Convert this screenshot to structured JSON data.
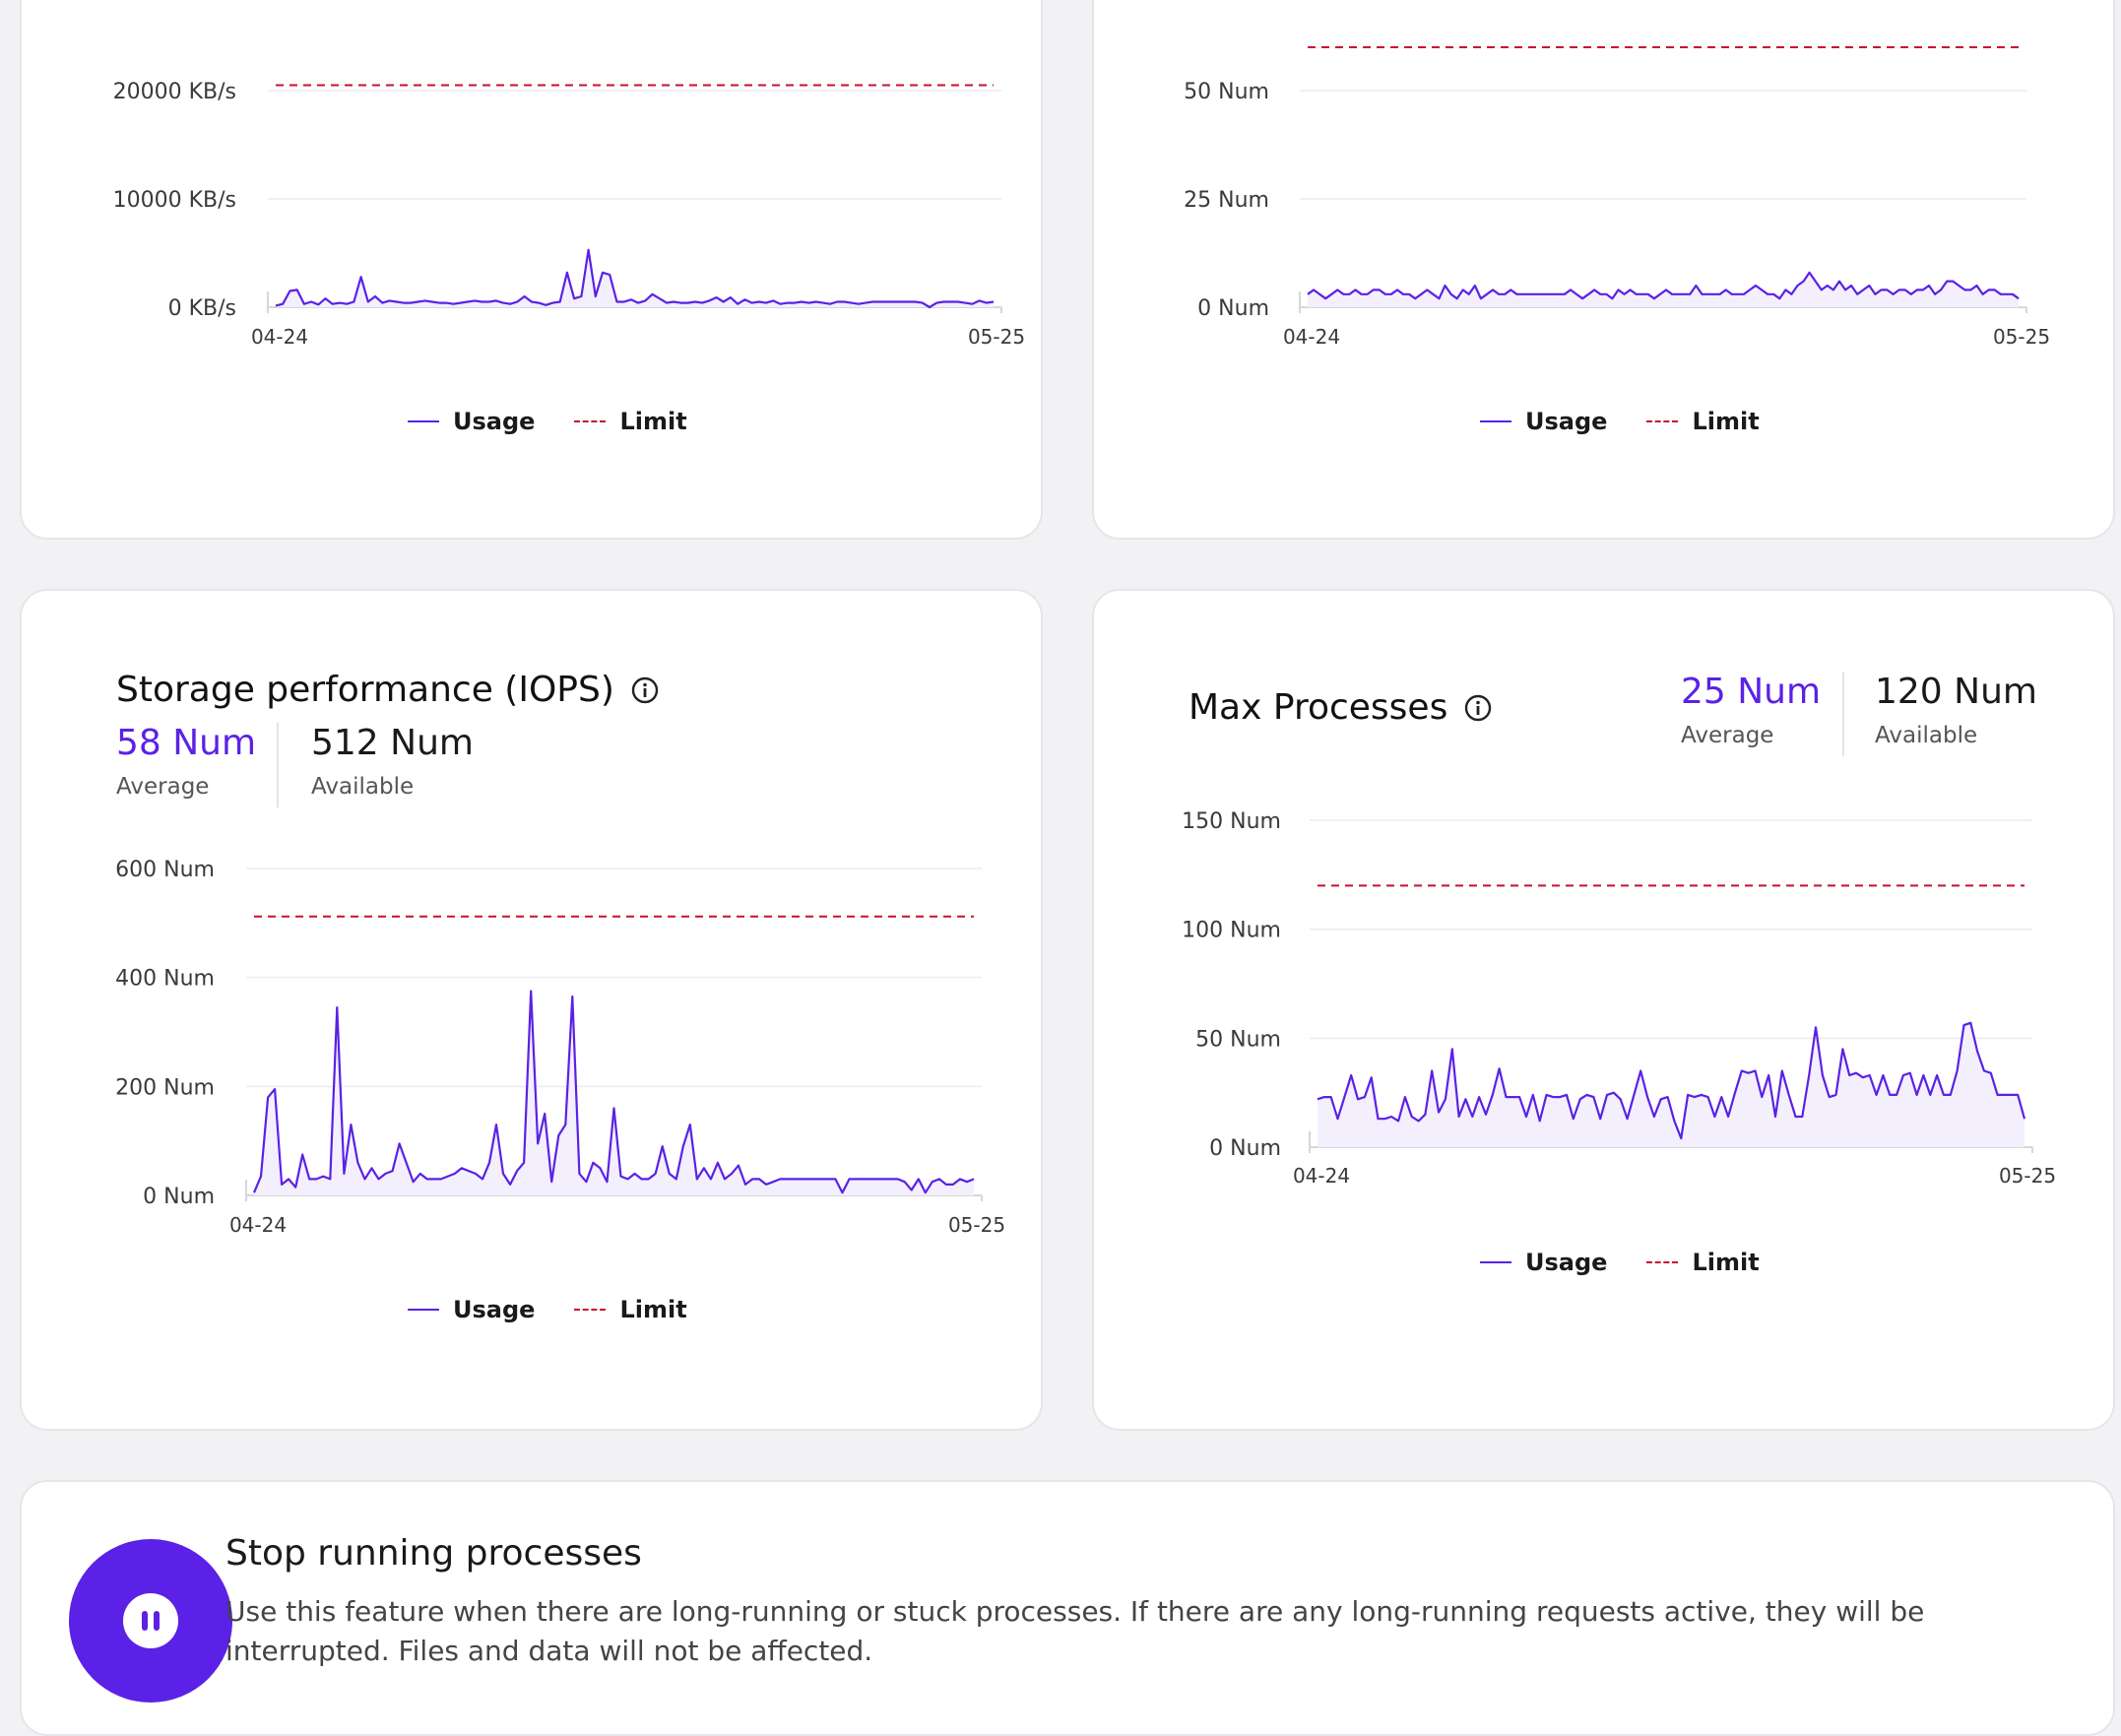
{
  "colors": {
    "accent": "#5b21e6",
    "limit": "#c8102e",
    "grid": "#ececf0",
    "area": "#f3effd"
  },
  "cards": {
    "bandwidth": {
      "legend": {
        "usage": "Usage",
        "limit": "Limit"
      }
    },
    "processes": {
      "legend": {
        "usage": "Usage",
        "limit": "Limit"
      }
    },
    "iops": {
      "title": "Storage performance (IOPS)",
      "info_icon": "info-icon",
      "average_value": "58 Num",
      "average_label": "Average",
      "available_value": "512 Num",
      "available_label": "Available",
      "legend": {
        "usage": "Usage",
        "limit": "Limit"
      }
    },
    "max_processes": {
      "title": "Max Processes",
      "info_icon": "info-icon",
      "average_value": "25 Num",
      "average_label": "Average",
      "available_value": "120 Num",
      "available_label": "Available",
      "legend": {
        "usage": "Usage",
        "limit": "Limit"
      }
    }
  },
  "stop": {
    "icon": "pause-icon",
    "title": "Stop running processes",
    "description": "Use this feature when there are long-running or stuck processes. If there are any long-running requests active, they will be interrupted. Files and data will not be affected."
  },
  "chart_data": [
    {
      "type": "line",
      "id": "bandwidth",
      "ylim": [
        0,
        20000
      ],
      "yticks": [
        0,
        10000,
        20000
      ],
      "ytick_labels": [
        "0 KB/s",
        "10000 KB/s",
        "20000 KB/s"
      ],
      "xtick_labels": [
        "04-24",
        "05-25"
      ],
      "limit": 20500,
      "series": [
        {
          "name": "Usage",
          "values": [
            150,
            300,
            1500,
            1600,
            300,
            500,
            250,
            800,
            300,
            400,
            300,
            500,
            2800,
            500,
            1000,
            400,
            600,
            500,
            400,
            400,
            500,
            600,
            500,
            400,
            400,
            300,
            400,
            500,
            600,
            500,
            500,
            600,
            400,
            300,
            500,
            1000,
            500,
            400,
            200,
            400,
            500,
            3200,
            800,
            1000,
            5300,
            1000,
            3200,
            3000,
            500,
            500,
            700,
            400,
            600,
            1200,
            800,
            400,
            500,
            400,
            400,
            500,
            400,
            600,
            900,
            500,
            900,
            300,
            700,
            400,
            500,
            400,
            600,
            300,
            400,
            400,
            500,
            400,
            500,
            400,
            300,
            500,
            500,
            400,
            300,
            400,
            500,
            500,
            500,
            500,
            500,
            500,
            500,
            400,
            0,
            400,
            500,
            500,
            500,
            400,
            300,
            600,
            400,
            500
          ]
        },
        {
          "name": "Limit",
          "values": [
            20500,
            20500
          ]
        }
      ]
    },
    {
      "type": "line",
      "id": "processes",
      "ylim": [
        0,
        50
      ],
      "yticks": [
        0,
        25,
        50
      ],
      "ytick_labels": [
        "0 Num",
        "25 Num",
        "50 Num"
      ],
      "xtick_labels": [
        "04-24",
        "05-25"
      ],
      "limit": 60,
      "series": [
        {
          "name": "Usage",
          "values": [
            3,
            4,
            3,
            2,
            3,
            4,
            3,
            3,
            4,
            3,
            3,
            4,
            4,
            3,
            3,
            4,
            3,
            3,
            2,
            3,
            4,
            3,
            2,
            5,
            3,
            2,
            4,
            3,
            5,
            2,
            3,
            4,
            3,
            3,
            4,
            3,
            3,
            3,
            3,
            3,
            3,
            3,
            3,
            3,
            4,
            3,
            2,
            3,
            4,
            3,
            3,
            2,
            4,
            3,
            4,
            3,
            3,
            3,
            2,
            3,
            4,
            3,
            3,
            3,
            3,
            5,
            3,
            3,
            3,
            3,
            4,
            3,
            3,
            3,
            4,
            5,
            4,
            3,
            3,
            2,
            4,
            3,
            5,
            6,
            8,
            6,
            4,
            5,
            4,
            6,
            4,
            5,
            3,
            4,
            5,
            3,
            4,
            4,
            3,
            4,
            4,
            3,
            4,
            4,
            5,
            3,
            4,
            6,
            6,
            5,
            4,
            4,
            5,
            3,
            4,
            4,
            3,
            3,
            3,
            2
          ]
        },
        {
          "name": "Limit",
          "values": [
            60,
            60
          ]
        }
      ]
    },
    {
      "type": "line",
      "id": "iops",
      "ylim": [
        0,
        600
      ],
      "yticks": [
        0,
        200,
        400,
        600
      ],
      "ytick_labels": [
        "0 Num",
        "200 Num",
        "400 Num",
        "600 Num"
      ],
      "xtick_labels": [
        "04-24",
        "05-25"
      ],
      "limit": 512,
      "series": [
        {
          "name": "Usage",
          "values": [
            5,
            35,
            180,
            195,
            20,
            30,
            15,
            75,
            30,
            30,
            35,
            30,
            345,
            40,
            130,
            60,
            30,
            50,
            30,
            40,
            45,
            95,
            60,
            25,
            40,
            30,
            30,
            30,
            35,
            40,
            50,
            45,
            40,
            30,
            60,
            130,
            40,
            20,
            45,
            60,
            375,
            95,
            150,
            25,
            110,
            130,
            365,
            40,
            25,
            60,
            50,
            25,
            160,
            35,
            30,
            40,
            30,
            30,
            40,
            90,
            40,
            30,
            90,
            130,
            30,
            50,
            30,
            60,
            30,
            40,
            55,
            20,
            30,
            30,
            20,
            25,
            30,
            30,
            30,
            30,
            30,
            30,
            30,
            30,
            30,
            5,
            30,
            30,
            30,
            30,
            30,
            30,
            30,
            30,
            25,
            10,
            30,
            5,
            25,
            30,
            20,
            20,
            30,
            25,
            30
          ]
        },
        {
          "name": "Limit",
          "values": [
            512,
            512
          ]
        }
      ]
    },
    {
      "type": "line",
      "id": "max_processes",
      "ylim": [
        0,
        150
      ],
      "yticks": [
        0,
        50,
        100,
        150
      ],
      "ytick_labels": [
        "0 Num",
        "50 Num",
        "100 Num",
        "150 Num"
      ],
      "xtick_labels": [
        "04-24",
        "05-25"
      ],
      "limit": 120,
      "series": [
        {
          "name": "Usage",
          "values": [
            22,
            23,
            23,
            13,
            23,
            33,
            22,
            23,
            32,
            13,
            13,
            14,
            12,
            23,
            14,
            12,
            15,
            35,
            16,
            22,
            45,
            14,
            22,
            14,
            23,
            15,
            24,
            36,
            23,
            23,
            23,
            14,
            24,
            12,
            24,
            23,
            23,
            24,
            13,
            22,
            24,
            23,
            13,
            24,
            25,
            22,
            13,
            24,
            35,
            23,
            14,
            22,
            23,
            12,
            4,
            24,
            23,
            24,
            23,
            14,
            23,
            14,
            25,
            35,
            34,
            35,
            23,
            33,
            14,
            35,
            24,
            14,
            14,
            33,
            55,
            33,
            23,
            24,
            45,
            33,
            34,
            32,
            33,
            24,
            33,
            24,
            24,
            33,
            34,
            24,
            33,
            24,
            33,
            24,
            24,
            35,
            56,
            57,
            44,
            35,
            34,
            24,
            24,
            24,
            24,
            13
          ]
        },
        {
          "name": "Limit",
          "values": [
            120,
            120
          ]
        }
      ]
    }
  ]
}
